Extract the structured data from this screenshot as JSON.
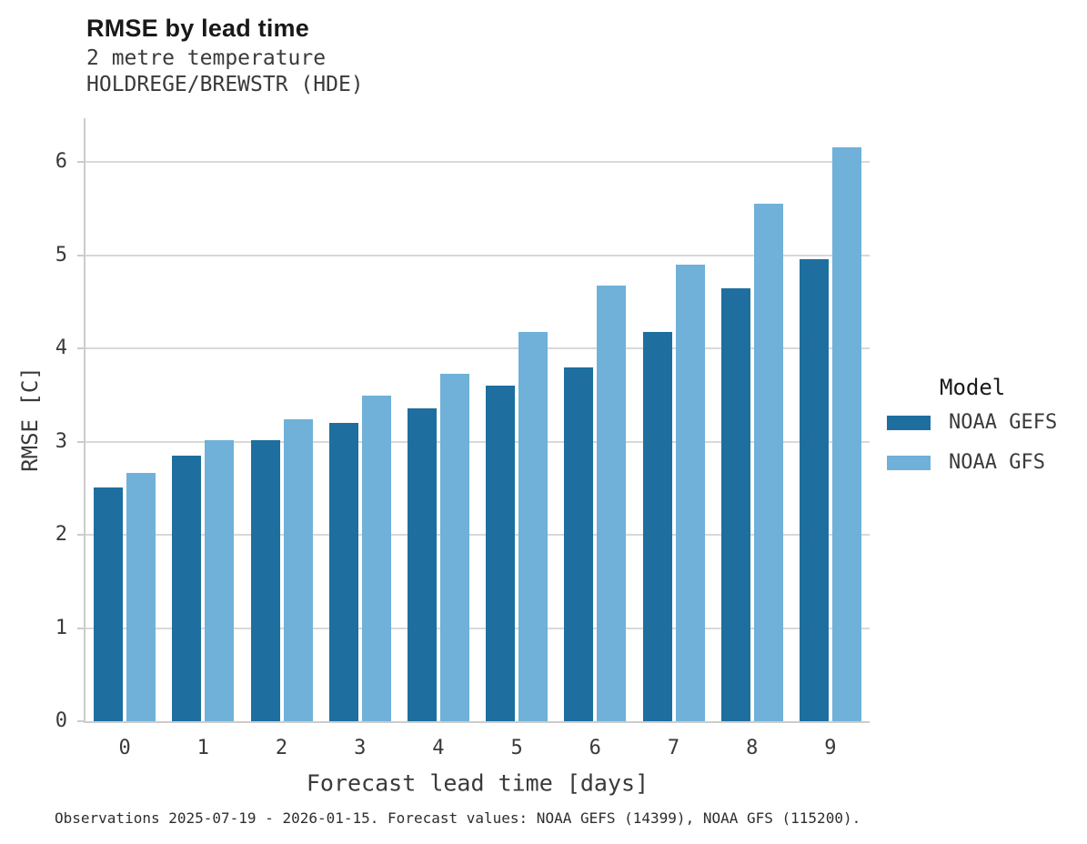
{
  "header": {
    "title": "RMSE by lead time",
    "subtitle_lines": [
      "2 metre temperature",
      "HOLDREGE/BREWSTR (HDE)"
    ]
  },
  "legend": {
    "title": "Model",
    "entries": [
      {
        "label": "NOAA GEFS",
        "color": "#1e6f9f"
      },
      {
        "label": "NOAA GFS",
        "color": "#6fb1d8"
      }
    ]
  },
  "footer": {
    "caption": "Observations 2025-07-19 - 2026-01-15. Forecast values: NOAA GEFS (14399), NOAA GFS (115200)."
  },
  "chart_data": {
    "type": "bar",
    "title": "RMSE by lead time",
    "subtitle": "2 metre temperature, HOLDREGE/BREWSTR (HDE)",
    "categories": [
      "0",
      "1",
      "2",
      "3",
      "4",
      "5",
      "6",
      "7",
      "8",
      "9"
    ],
    "series": [
      {
        "name": "NOAA GEFS",
        "color": "#1e6f9f",
        "values": [
          2.51,
          2.85,
          3.02,
          3.2,
          3.36,
          3.6,
          3.8,
          4.18,
          4.65,
          4.96
        ]
      },
      {
        "name": "NOAA GFS",
        "color": "#6fb1d8",
        "values": [
          2.66,
          3.02,
          3.24,
          3.49,
          3.73,
          4.18,
          4.67,
          4.9,
          5.55,
          6.16
        ]
      }
    ],
    "xlabel": "Forecast lead time [days]",
    "ylabel": "RMSE [C]",
    "ylim": [
      0,
      6.47
    ],
    "yticks": [
      0,
      1,
      2,
      3,
      4,
      5,
      6
    ],
    "grid": "horizontal",
    "grid_color": "#d8d8d8",
    "spine_color": "#cccccc",
    "legend_position": "right-center",
    "legend_title": "Model"
  },
  "colors": {
    "background": "#ffffff",
    "title_text": "#191919",
    "body_text": "#3a3a3a"
  }
}
